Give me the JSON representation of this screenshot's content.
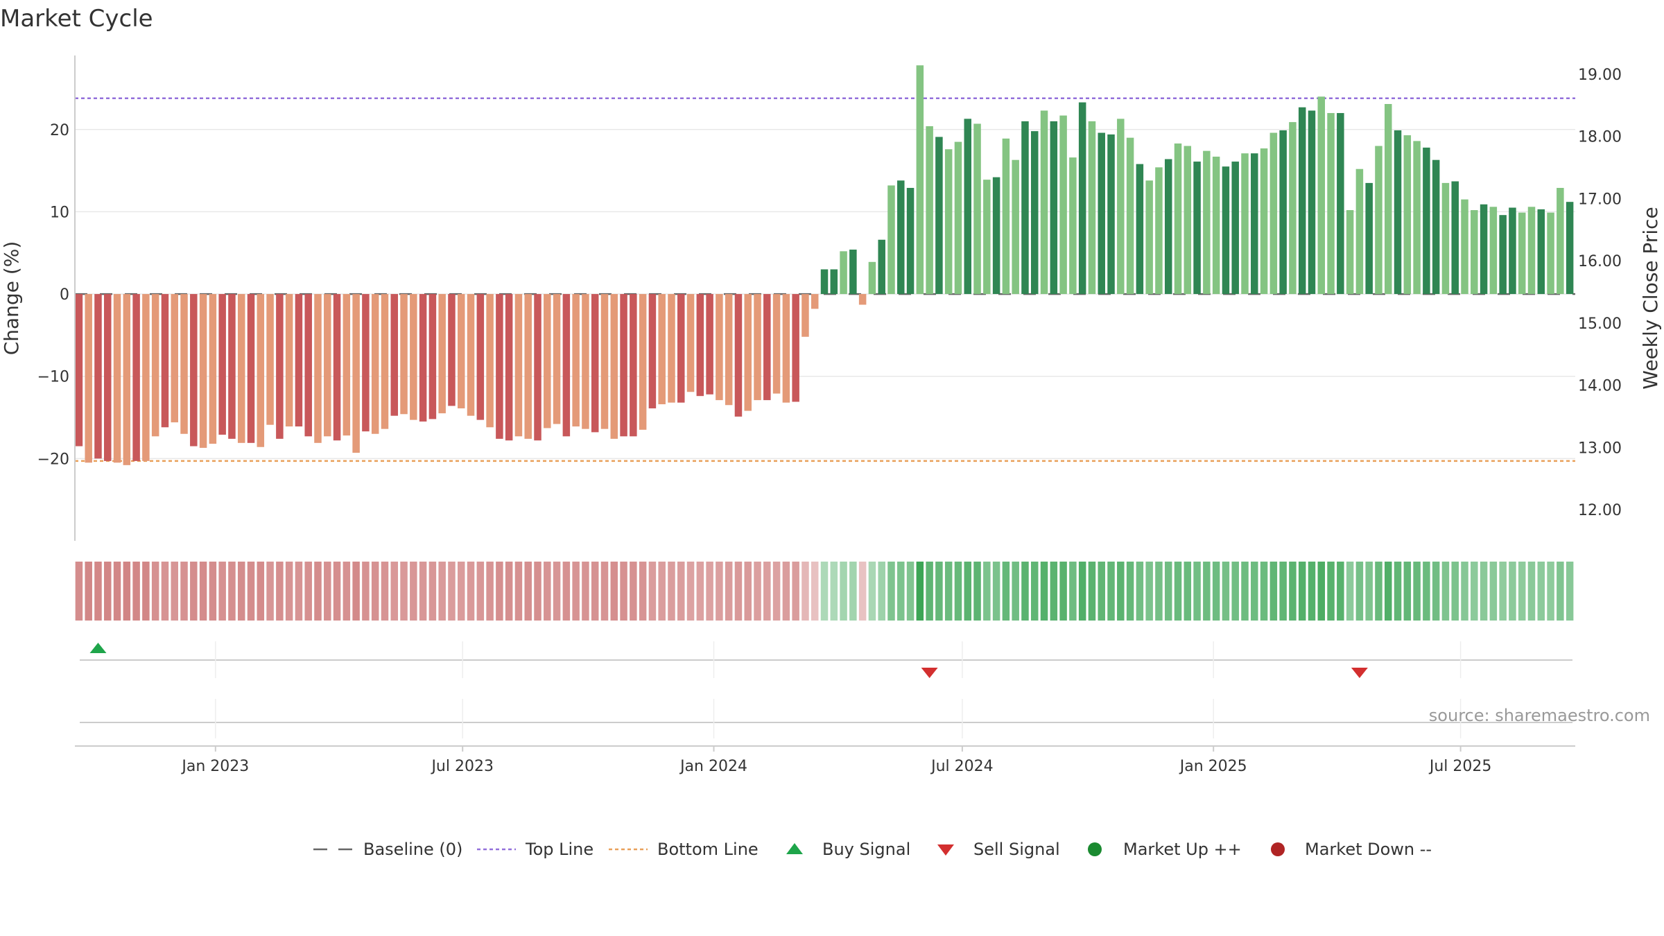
{
  "chart_data": {
    "type": "bar",
    "title": "Market Cycle",
    "ylabel_left": "Change (%)",
    "ylabel_right": "Weekly Close Price",
    "ylim_left": [
      -30,
      29
    ],
    "ylim_right": [
      11.5,
      19.3
    ],
    "yticks_left": [
      20,
      10,
      0,
      -10,
      -20
    ],
    "ytick_labels_left": [
      "20",
      "10",
      "0",
      "−10",
      "−20"
    ],
    "yticks_right": [
      19,
      18,
      17,
      16,
      15,
      14,
      13,
      12
    ],
    "ytick_labels_right": [
      "19.00",
      "18.00",
      "17.00",
      "16.00",
      "15.00",
      "14.00",
      "13.00",
      "12.00"
    ],
    "x_range": [
      "2022-09-20",
      "2025-09-23"
    ],
    "xticks": [
      "2023-01-01",
      "2023-07-01",
      "2024-01-01",
      "2024-07-01",
      "2025-01-01",
      "2025-07-01"
    ],
    "xtick_labels": [
      "Jan 2023",
      "Jul 2023",
      "Jan 2024",
      "Jul 2024",
      "Jan 2025",
      "Jul 2025"
    ],
    "top_line": 23.8,
    "bottom_line": -20.3,
    "baseline": 0,
    "bar_start_date": "2022-09-23",
    "values": [
      -18.5,
      -20.5,
      -20,
      -20.3,
      -20.5,
      -20.8,
      -20.3,
      -20.3,
      -17.3,
      -16.2,
      -15.6,
      -17,
      -18.5,
      -18.7,
      -18.2,
      -17.1,
      -17.6,
      -18.1,
      -18.1,
      -18.6,
      -15.9,
      -17.6,
      -16.1,
      -16.1,
      -17.3,
      -18.1,
      -17.3,
      -17.8,
      -17.2,
      -19.3,
      -16.7,
      -17,
      -16.4,
      -14.8,
      -14.6,
      -15.3,
      -15.5,
      -15.2,
      -14.5,
      -13.6,
      -13.9,
      -14.8,
      -15.3,
      -16.2,
      -17.6,
      -17.8,
      -17.3,
      -17.6,
      -17.8,
      -16.3,
      -15.8,
      -17.3,
      -16.1,
      -16.4,
      -16.8,
      -16.4,
      -17.6,
      -17.3,
      -17.3,
      -16.5,
      -13.9,
      -13.4,
      -13.2,
      -13.2,
      -11.9,
      -12.4,
      -12.2,
      -12.9,
      -13.5,
      -14.9,
      -14.2,
      -12.9,
      -12.9,
      -12.1,
      -13.2,
      -13.1,
      -5.2,
      -1.8,
      3,
      3,
      5.2,
      5.4,
      -1.3,
      3.9,
      6.6,
      13.2,
      13.8,
      12.9,
      27.8,
      20.4,
      19.1,
      17.6,
      18.5,
      21.3,
      20.7,
      13.9,
      14.2,
      18.9,
      16.3,
      21,
      19.8,
      22.3,
      21,
      21.7,
      16.6,
      23.3,
      21,
      19.6,
      19.4,
      21.3,
      19,
      15.8,
      13.8,
      15.4,
      16.4,
      18.3,
      18,
      16.1,
      17.4,
      16.7,
      15.5,
      16.1,
      17.1,
      17.1,
      17.7,
      19.6,
      19.9,
      20.9,
      22.7,
      22.3,
      24,
      22,
      22,
      10.2,
      15.2,
      13.5,
      18,
      23.1,
      19.9,
      19.3,
      18.6,
      17.8,
      16.3,
      13.5,
      13.7,
      11.5,
      10.2,
      10.9,
      10.6,
      9.6,
      10.5,
      9.9,
      10.6,
      10.3,
      9.9,
      12.9,
      11.2
    ],
    "signals": [
      {
        "type": "buy",
        "date": "2022-10-07"
      },
      {
        "type": "sell",
        "date": "2024-06-07"
      },
      {
        "type": "sell",
        "date": "2025-04-18"
      }
    ],
    "legend": [
      "Baseline (0)",
      "Top Line",
      "Bottom Line",
      "Buy Signal",
      "Sell Signal",
      "Market Up ++",
      "Market Down --"
    ],
    "legend_placement": "bottom-center",
    "grid": true,
    "source": "source: sharemaestro.com"
  },
  "colors": {
    "down_strong": "#c8585a",
    "down_light": "#e49a78",
    "up_strong": "#2f8653",
    "up_light": "#84c482",
    "top_line": "#9370db",
    "bottom_line": "#e9a05a",
    "baseline": "#666666",
    "buy": "#1ea54a",
    "sell": "#d32f2f",
    "market_up": "#1a8a30",
    "market_down": "#b02424",
    "grid": "#e8e8e8",
    "axis": "#cccccc"
  }
}
